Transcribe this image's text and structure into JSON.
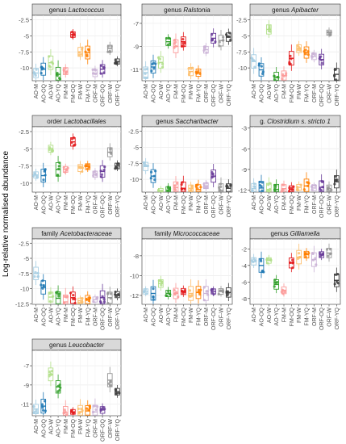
{
  "figure": {
    "ylabel": "Log-relative normalised abundance"
  },
  "groups": [
    "AO-M",
    "AO-OQ",
    "AO-W",
    "AO-YQ",
    "FM-M",
    "FM-OQ",
    "FM-W",
    "FM-YQ",
    "ORF-M",
    "ORF-OQ",
    "ORF-W",
    "ORF-YQ"
  ],
  "colors": [
    "#a6cee3",
    "#1f78b4",
    "#b2df8a",
    "#33a02c",
    "#fb9a99",
    "#e31a1c",
    "#fdbf6f",
    "#ff7f00",
    "#cab2d6",
    "#6a3d9a",
    "#969696",
    "#3d3d3d"
  ],
  "chart_data": [
    {
      "type": "box",
      "title_prefix": "genus",
      "title_italic": "Lactococcus",
      "ylim": [
        -12,
        -1.8
      ],
      "yticks": [
        -10,
        -7.5,
        -5,
        -2.5
      ],
      "medians": [
        -10.8,
        -10.2,
        -9.2,
        -11.0,
        -10.5,
        -4.8,
        -7.5,
        -7.6,
        -10.8,
        -10.2,
        -7.0,
        -9.0
      ]
    },
    {
      "type": "box",
      "title_prefix": "genus",
      "title_italic": "Ralstonia",
      "ylim": [
        -12,
        -6.3
      ],
      "yticks": [
        -11,
        -9,
        -7
      ],
      "medians": [
        -11.3,
        -10.8,
        -10.4,
        -8.6,
        -9.0,
        -8.6,
        -11.2,
        -11.3,
        -9.3,
        -8.3,
        -8.5,
        -8.2
      ]
    },
    {
      "type": "box",
      "title_prefix": "genus",
      "title_italic": "Apibacter",
      "ylim": [
        -12,
        -1.8
      ],
      "yticks": [
        -10,
        -7.5,
        -5,
        -2.5
      ],
      "medians": [
        -9.0,
        -10.3,
        -4.0,
        -11.5,
        -11.2,
        -8.5,
        -7.0,
        -7.6,
        -8.2,
        -8.7,
        -4.5,
        -11.0
      ]
    },
    {
      "type": "box",
      "title_prefix": "order",
      "title_italic": "Lactobacillales",
      "ylim": [
        -11.3,
        -1.8
      ],
      "yticks": [
        -10,
        -7.5,
        -5,
        -2.5
      ],
      "medians": [
        -8.8,
        -8.9,
        -5.0,
        -8.0,
        -8.0,
        -4.0,
        -7.8,
        -7.6,
        -8.7,
        -8.3,
        -5.5,
        -7.5
      ]
    },
    {
      "type": "box",
      "title_prefix": "genus",
      "title_italic": "Saccharibacter",
      "ylim": [
        -12,
        -1.8
      ],
      "yticks": [
        -10,
        -7.5,
        -5,
        -2.5
      ],
      "medians": [
        -8.0,
        -9.5,
        -11.8,
        -11.7,
        -11.3,
        -11.4,
        -11.4,
        -11.6,
        -11.0,
        -9.5,
        -11.7,
        -11.4
      ]
    },
    {
      "type": "box",
      "title_prefix": "g.",
      "title_italic": "Clostridium s. stricto 1",
      "ylim": [
        -12.3,
        -2.8
      ],
      "yticks": [
        -12,
        -9,
        -6,
        -3
      ],
      "medians": [
        -11.8,
        -11.7,
        -11.9,
        -11.9,
        -11.8,
        -11.9,
        -11.6,
        -11.4,
        -11.7,
        -11.6,
        -11.8,
        -10.8
      ]
    },
    {
      "type": "box",
      "title_prefix": "family",
      "title_italic": "Acetobacteraceae",
      "ylim": [
        -12.6,
        -1.8
      ],
      "yticks": [
        -12.5,
        -10,
        -7.5,
        -5,
        -2.5
      ],
      "medians": [
        -7.5,
        -9.8,
        -11.4,
        -11.6,
        -12.2,
        -11.5,
        -12.0,
        -11.8,
        -11.8,
        -11.5,
        -11.5,
        -11.0
      ]
    },
    {
      "type": "box",
      "title_prefix": "family",
      "title_italic": "Micrococcaceae",
      "ylim": [
        -12.9,
        -6.3
      ],
      "yticks": [
        -12,
        -10,
        -8
      ],
      "medians": [
        -11.6,
        -11.8,
        -10.8,
        -11.8,
        -11.8,
        -11.6,
        -11.8,
        -11.7,
        -11.8,
        -11.6,
        -11.6,
        -11.7
      ]
    },
    {
      "type": "box",
      "title_prefix": "genus",
      "title_italic": "Gilliamella",
      "ylim": [
        -8.7,
        -0.8
      ],
      "yticks": [
        -8,
        -6,
        -4,
        -2
      ],
      "medians": [
        -3.5,
        -4.0,
        -3.4,
        -6.3,
        -7.0,
        -3.7,
        -3.0,
        -2.7,
        -3.3,
        -2.7,
        -2.5,
        -5.8
      ]
    },
    {
      "type": "box",
      "title_prefix": "genus",
      "title_italic": "Leucobacter",
      "ylim": [
        -12.2,
        -5.4
      ],
      "yticks": [
        -11,
        -9,
        -7
      ],
      "medians": [
        -11.5,
        -11.2,
        -7.9,
        -9.2,
        -11.9,
        -11.8,
        -11.8,
        -11.7,
        -11.8,
        -11.6,
        -8.5,
        -9.7
      ]
    }
  ]
}
